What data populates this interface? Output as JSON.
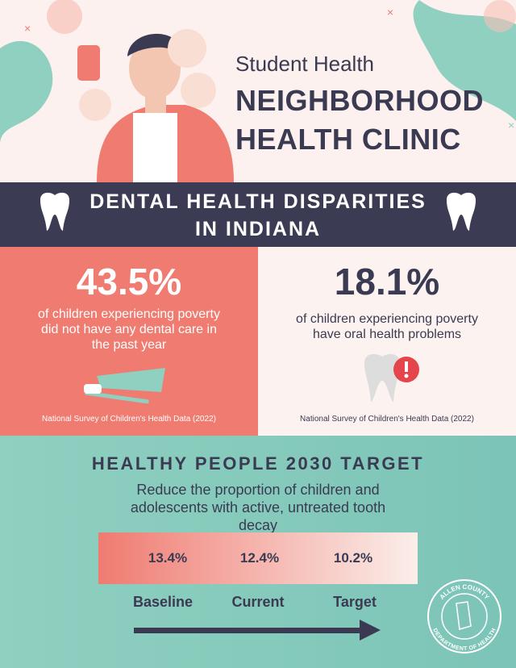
{
  "header": {
    "subtitle": "Student Health",
    "title_lines": [
      "NEIGHBORHOOD",
      "HEALTH CLINIC"
    ]
  },
  "banner": {
    "lines": [
      "DENTAL HEALTH DISPARITIES",
      "IN INDIANA"
    ]
  },
  "stats": [
    {
      "value": "43.5%",
      "text": "of children experiencing poverty did not have any dental care in the past year",
      "source": "National Survey of Children's Health Data (2022)"
    },
    {
      "value": "18.1%",
      "text": "of children experiencing poverty have oral health problems",
      "source": "National Survey of Children's Health Data (2022)"
    }
  ],
  "target": {
    "title": "HEALTHY PEOPLE 2030 TARGET",
    "description": "Reduce the proportion of children and adolescents with active, untreated tooth decay",
    "items": [
      {
        "value": "13.4%",
        "label": "Baseline"
      },
      {
        "value": "12.4%",
        "label": "Current"
      },
      {
        "value": "10.2%",
        "label": "Target"
      }
    ]
  },
  "logo": {
    "top": "ALLEN COUNTY",
    "bottom": "DEPARTMENT OF HEALTH"
  }
}
